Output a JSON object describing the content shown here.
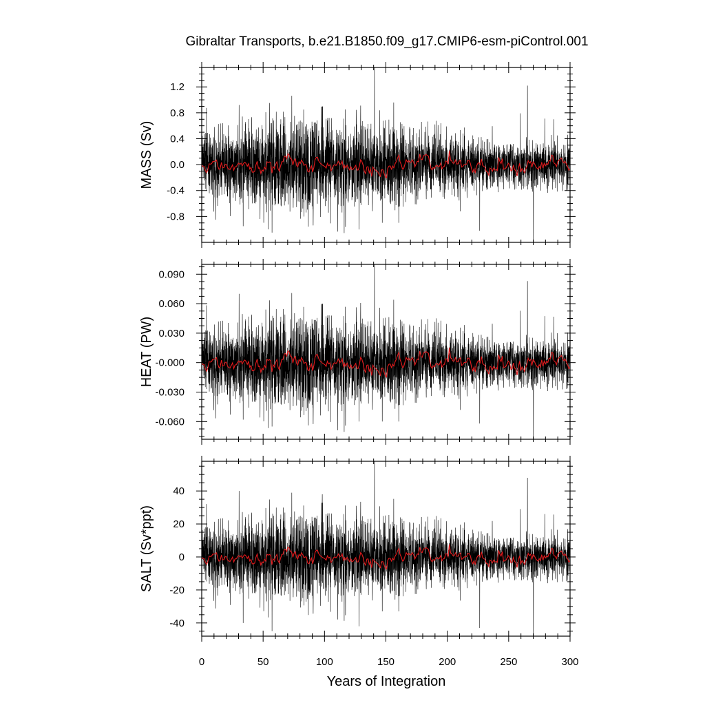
{
  "figure": {
    "title": "Gibraltar Transports, b.e21.B1850.f09_g17.CMIP6-esm-piControl.001",
    "xlabel": "Years of Integration"
  },
  "colors": {
    "raw_series": "#000000",
    "smoothed_series": "#e31a1c"
  },
  "chart_data": [
    {
      "type": "line",
      "panel": "MASS",
      "ylabel": "MASS (Sv)",
      "xlim": [
        0,
        300
      ],
      "ylim": [
        -1.2,
        1.5
      ],
      "xticks": [
        0,
        50,
        100,
        150,
        200,
        250,
        300
      ],
      "yticks": [
        -0.8,
        -0.4,
        0.0,
        0.4,
        0.8,
        1.2
      ],
      "ytick_labels": [
        "-0.8",
        "-0.4",
        "0.0",
        "0.4",
        "0.8",
        "1.2"
      ],
      "series": [
        {
          "role": "monthly",
          "color": "#000000",
          "noise_sd": 0.3,
          "spikes": [
            [
              140.7,
              1.5
            ],
            [
              265.3,
              1.22
            ],
            [
              270.2,
              -1.2
            ],
            [
              57.3,
              -1.05
            ],
            [
              128.1,
              -1.0
            ],
            [
              226.4,
              -1.02
            ],
            [
              98.2,
              0.9
            ],
            [
              30.4,
              0.92
            ],
            [
              33.8,
              -0.95
            ]
          ]
        },
        {
          "role": "smoothed",
          "color": "#e31a1c",
          "amplitude": 0.07
        }
      ]
    },
    {
      "type": "line",
      "panel": "HEAT",
      "ylabel": "HEAT (PW)",
      "xlim": [
        0,
        300
      ],
      "ylim": [
        -0.078,
        0.1
      ],
      "xticks": [
        0,
        50,
        100,
        150,
        200,
        250,
        300
      ],
      "yticks": [
        -0.06,
        -0.03,
        0.0,
        0.03,
        0.06,
        0.09
      ],
      "ytick_labels": [
        "-0.060",
        "-0.030",
        "-0.000",
        "0.030",
        "0.060",
        "0.090"
      ],
      "series": [
        {
          "role": "monthly",
          "color": "#000000",
          "noise_sd": 0.02,
          "spikes": [
            [
              140.7,
              0.1
            ],
            [
              265.3,
              0.083
            ],
            [
              270.2,
              -0.078
            ],
            [
              57.3,
              -0.065
            ],
            [
              128.1,
              -0.06
            ],
            [
              226.4,
              -0.062
            ],
            [
              98.2,
              0.06
            ],
            [
              30.4,
              0.07
            ],
            [
              33.8,
              -0.058
            ]
          ]
        },
        {
          "role": "smoothed",
          "color": "#e31a1c",
          "amplitude": 0.005
        }
      ]
    },
    {
      "type": "line",
      "panel": "SALT",
      "ylabel": "SALT (Sv*ppt)",
      "xlim": [
        0,
        300
      ],
      "ylim": [
        -48,
        58
      ],
      "xticks": [
        0,
        50,
        100,
        150,
        200,
        250,
        300
      ],
      "yticks": [
        -40,
        -20,
        0,
        20,
        40
      ],
      "ytick_labels": [
        "-40",
        "-20",
        "0",
        "20",
        "40"
      ],
      "xtick_labels": [
        "0",
        "50",
        "100",
        "150",
        "200",
        "250",
        "300"
      ],
      "series": [
        {
          "role": "monthly",
          "color": "#000000",
          "noise_sd": 11,
          "spikes": [
            [
              140.7,
              58
            ],
            [
              265.3,
              48
            ],
            [
              270.2,
              -48
            ],
            [
              57.3,
              -45
            ],
            [
              128.1,
              -42
            ],
            [
              226.4,
              -43
            ],
            [
              98.2,
              38
            ],
            [
              30.4,
              40
            ],
            [
              33.8,
              -40
            ]
          ]
        },
        {
          "role": "smoothed",
          "color": "#e31a1c",
          "amplitude": 2.5
        }
      ]
    }
  ]
}
